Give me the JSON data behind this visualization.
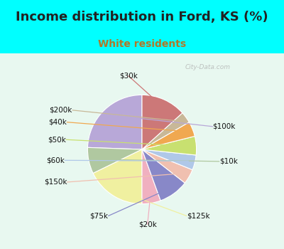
{
  "title": "Income distribution in Ford, KS (%)",
  "subtitle": "White residents",
  "watermark": "© City-Data.com",
  "background_top": "#00FFFF",
  "background_chart_top": "#d8f0e8",
  "background_chart_bottom": "#e8f8f0",
  "labels": [
    "$100k",
    "$10k",
    "$125k",
    "$20k",
    "$75k",
    "$150k",
    "$60k",
    "$50k",
    "$40k",
    "$200k",
    "$30k"
  ],
  "sizes": [
    22,
    7,
    16,
    5,
    8,
    4,
    4,
    5,
    4,
    3,
    12
  ],
  "colors": [
    "#b8a8d8",
    "#b0c8a0",
    "#f0f0a0",
    "#f0b0c0",
    "#8888c8",
    "#f0c0b0",
    "#b0c8e8",
    "#c8e070",
    "#f0a850",
    "#c8b898",
    "#cc7878"
  ],
  "startangle": 90,
  "title_fontsize": 13,
  "subtitle_fontsize": 10,
  "subtitle_color": "#b07828",
  "label_fontsize": 7.5,
  "title_color": "#222222"
}
